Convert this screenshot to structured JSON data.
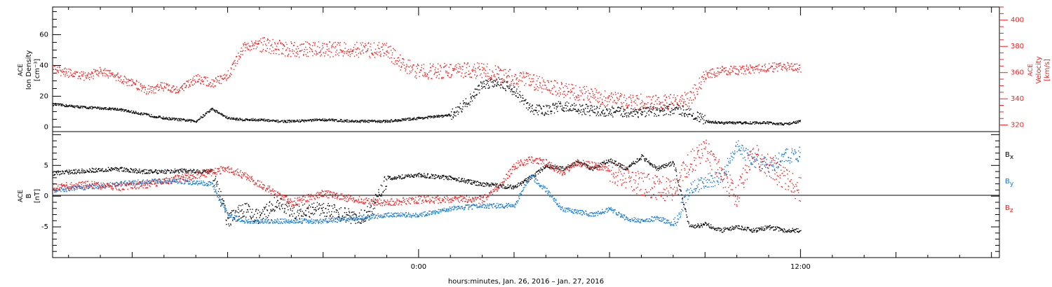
{
  "xlabel": "hours:minutes, Jan. 26, 2016 – Jan. 27, 2016",
  "x_ticks": [
    {
      "h": 0,
      "label": "0:00"
    },
    {
      "h": 12,
      "label": "12:00"
    }
  ],
  "x_range_hours": [
    -11.5,
    18.25
  ],
  "colors": {
    "black": "#000000",
    "red": "#ee2222",
    "blue": "#1177cc"
  },
  "chart_data": [
    {
      "type": "scatter",
      "panel": "top",
      "ylabel_left": [
        "ACE",
        "Ion Density",
        "[cm⁻³]"
      ],
      "ylabel_right": [
        "ACE",
        "Velocity",
        "[km/s]"
      ],
      "ylim_left": [
        -3,
        78
      ],
      "yticks_left": [
        0,
        20,
        40,
        60
      ],
      "ylim_right": [
        315,
        410
      ],
      "yticks_right": [
        320,
        340,
        360,
        380,
        400
      ],
      "series": [
        {
          "axis": "left",
          "color": "black",
          "x": [
            -11.5,
            -10.5,
            -9.5,
            -8.5,
            -8.0,
            -7.5,
            -7.0,
            -6.5,
            -6.0,
            -5.5,
            -5.0,
            -4.5,
            -4.0,
            -3.0,
            -2.0,
            -1.0,
            0.0,
            1.0,
            1.5,
            2.0,
            2.5,
            3.0,
            3.5,
            4.0,
            4.5,
            5.0,
            5.5,
            6.0,
            6.5,
            7.0,
            7.5,
            8.0,
            8.5,
            9.0,
            9.5,
            10.0,
            11.0,
            11.5,
            12.0
          ],
          "values": [
            15,
            13,
            12,
            8,
            6,
            5,
            4,
            12,
            6,
            5,
            5,
            4,
            4,
            5,
            4,
            4,
            6,
            8,
            16,
            28,
            30,
            24,
            12,
            11,
            14,
            12,
            11,
            10,
            10,
            10,
            10,
            12,
            10,
            4,
            3,
            3,
            3,
            2,
            4
          ]
        },
        {
          "axis": "right",
          "color": "red",
          "x": [
            -11.5,
            -11.0,
            -10.5,
            -10.0,
            -9.5,
            -9.0,
            -8.5,
            -8.0,
            -7.5,
            -7.0,
            -6.5,
            -6.0,
            -5.5,
            -5.0,
            -4.0,
            -3.0,
            -2.0,
            -1.0,
            -0.5,
            0.0,
            1.0,
            2.0,
            3.0,
            3.5,
            4.0,
            4.5,
            5.0,
            5.5,
            6.0,
            6.5,
            7.0,
            7.5,
            8.0,
            8.5,
            9.0,
            9.5,
            10.0,
            11.0,
            11.5,
            12.0
          ],
          "values": [
            363,
            360,
            357,
            361,
            357,
            352,
            347,
            350,
            347,
            356,
            352,
            358,
            380,
            382,
            378,
            378,
            378,
            377,
            366,
            361,
            362,
            362,
            356,
            354,
            350,
            347,
            345,
            343,
            340,
            338,
            338,
            337,
            338,
            340,
            358,
            362,
            362,
            364,
            365,
            364
          ]
        }
      ]
    },
    {
      "type": "scatter",
      "panel": "bottom",
      "ylabel_left": [
        "ACE",
        "B",
        "[nT]"
      ],
      "ylim": [
        -10,
        10.5
      ],
      "yticks": [
        -5,
        0,
        5
      ],
      "zero_line": true,
      "series": [
        {
          "name": "B",
          "sub": "x",
          "color": "black",
          "x": [
            -11.5,
            -10.5,
            -9.5,
            -8.5,
            -7.5,
            -6.5,
            -6.0,
            -5.5,
            -5.0,
            -4.5,
            -4.0,
            -3.0,
            -2.0,
            -1.5,
            -1.0,
            0.0,
            1.0,
            2.0,
            3.0,
            3.5,
            4.0,
            4.5,
            5.0,
            5.5,
            6.0,
            6.5,
            7.0,
            7.5,
            8.0,
            8.5,
            9.0,
            9.5,
            10.0,
            10.5,
            11.0,
            11.5,
            12.0
          ],
          "values": [
            3.8,
            4.2,
            4.5,
            4.0,
            4.2,
            4.0,
            -4.0,
            -2.0,
            -3.5,
            -1.0,
            -2.5,
            -2.0,
            -3.5,
            -2.5,
            3.0,
            3.5,
            3.0,
            2.0,
            1.5,
            3.0,
            5.0,
            4.5,
            5.5,
            4.5,
            6.0,
            4.5,
            6.5,
            4.5,
            5.5,
            -5.0,
            -4.5,
            -5.5,
            -5.0,
            -5.5,
            -5.0,
            -5.5,
            -5.5
          ]
        },
        {
          "name": "B",
          "sub": "y",
          "color": "blue",
          "x": [
            -11.5,
            -10.5,
            -9.5,
            -8.5,
            -7.5,
            -6.5,
            -6.0,
            -5.5,
            -5.0,
            -4.0,
            -3.0,
            -2.0,
            -1.0,
            0.0,
            1.0,
            2.0,
            3.0,
            3.5,
            4.0,
            4.5,
            5.0,
            5.5,
            6.0,
            6.5,
            7.0,
            7.5,
            8.0,
            8.5,
            9.0,
            9.5,
            10.0,
            10.5,
            11.0,
            11.5,
            12.0
          ],
          "values": [
            1.0,
            1.5,
            2.0,
            2.5,
            2.5,
            2.0,
            -3.0,
            -4.0,
            -4.0,
            -4.0,
            -4.0,
            -3.5,
            -3.0,
            -3.0,
            -2.0,
            -1.5,
            -1.5,
            3.5,
            1.0,
            -2.0,
            -2.5,
            -3.0,
            -2.0,
            -3.5,
            -4.0,
            -3.5,
            -4.5,
            1.0,
            2.5,
            3.0,
            8.0,
            6.0,
            5.0,
            6.5,
            7.0
          ]
        },
        {
          "name": "B",
          "sub": "z",
          "color": "red",
          "x": [
            -11.5,
            -10.5,
            -9.5,
            -8.5,
            -7.5,
            -6.5,
            -6.0,
            -5.5,
            -5.0,
            -4.5,
            -4.0,
            -3.0,
            -2.0,
            -1.0,
            0.0,
            1.0,
            2.0,
            2.5,
            3.0,
            3.5,
            4.0,
            4.5,
            5.0,
            5.5,
            6.0,
            6.5,
            7.0,
            7.5,
            8.0,
            8.5,
            9.0,
            9.5,
            10.0,
            10.5,
            11.0,
            11.5,
            12.0
          ],
          "values": [
            1.5,
            2.0,
            1.5,
            2.0,
            3.0,
            4.0,
            4.5,
            3.5,
            2.0,
            0.5,
            -1.0,
            0.5,
            -0.5,
            -1.0,
            -0.5,
            -0.5,
            -0.5,
            1.5,
            5.0,
            6.0,
            5.5,
            4.0,
            5.5,
            5.0,
            4.5,
            3.0,
            2.0,
            1.5,
            1.0,
            5.5,
            7.5,
            4.0,
            0.0,
            7.0,
            5.0,
            3.0,
            1.0
          ]
        }
      ]
    }
  ]
}
